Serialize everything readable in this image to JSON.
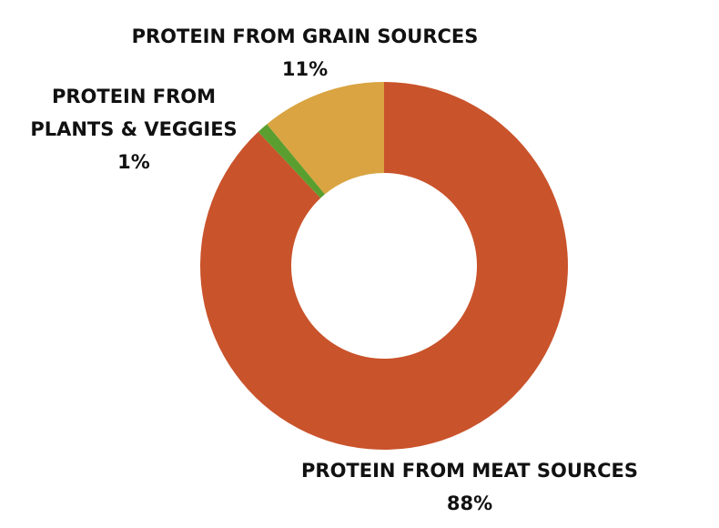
{
  "chart_data": {
    "type": "donut",
    "categories": [
      "PROTEIN FROM MEAT SOURCES",
      "PROTEIN FROM PLANTS & VEGGIES",
      "PROTEIN FROM GRAIN SOURCES"
    ],
    "values": [
      88,
      1,
      11
    ],
    "value_labels": [
      "88%",
      "1%",
      "11%"
    ],
    "colors": [
      "#c9532b",
      "#5a9e2f",
      "#d9a441"
    ]
  }
}
